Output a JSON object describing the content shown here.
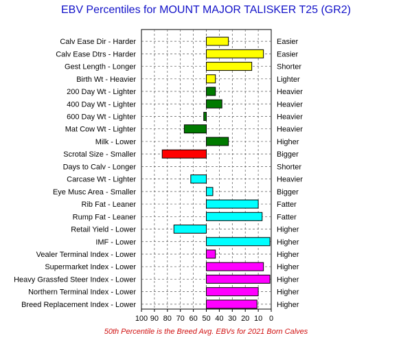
{
  "chart_data": {
    "type": "bar",
    "title": "EBV Percentiles for MOUNT MAJOR TALISKER T25 (GR2)",
    "footnote": "50th Percentile is the Breed Avg. EBVs for 2021 Born Calves",
    "xlim": [
      100,
      0
    ],
    "x_ticks": [
      100,
      90,
      80,
      70,
      60,
      50,
      40,
      30,
      20,
      10,
      0
    ],
    "baseline": 50,
    "grid": true,
    "categories": [
      "Calv Ease Dir - Harder",
      "Calv Ease Dtrs - Harder",
      "Gest Length - Longer",
      "Birth Wt - Heavier",
      "200 Day Wt - Lighter",
      "400 Day Wt - Lighter",
      "600 Day Wt - Lighter",
      "Mat Cow Wt - Lighter",
      "Milk - Lower",
      "Scrotal Size - Smaller",
      "Days to Calv - Longer",
      "Carcase Wt - Lighter",
      "Eye Musc Area - Smaller",
      "Rib Fat - Leaner",
      "Rump Fat - Leaner",
      "Retail Yield - Lower",
      "IMF - Lower",
      "Vealer Terminal Index - Lower",
      "Supermarket Index - Lower",
      "Heavy Grassfed Steer Index - Lower",
      "Northern Terminal Index - Lower",
      "Breed Replacement Index - Lower"
    ],
    "right_labels": [
      "Easier",
      "Easier",
      "Shorter",
      "Lighter",
      "Heavier",
      "Heavier",
      "Heavier",
      "Heavier",
      "Higher",
      "Bigger",
      "Shorter",
      "Heavier",
      "Bigger",
      "Fatter",
      "Fatter",
      "Higher",
      "Higher",
      "Higher",
      "Higher",
      "Higher",
      "Higher",
      "Higher"
    ],
    "values": [
      33,
      6,
      15,
      43,
      43,
      38,
      52,
      67,
      33,
      84,
      null,
      62,
      45,
      10,
      7,
      75,
      1,
      43,
      6,
      1,
      10,
      11
    ],
    "colors": [
      "#ffff00",
      "#ffff00",
      "#ffff00",
      "#ffff00",
      "#007a00",
      "#007a00",
      "#007a00",
      "#007a00",
      "#007a00",
      "#ff0000",
      "#ff0000",
      "#00ffff",
      "#00ffff",
      "#00ffff",
      "#00ffff",
      "#00ffff",
      "#00ffff",
      "#ff00ff",
      "#ff00ff",
      "#ff00ff",
      "#ff00ff",
      "#ff00ff"
    ]
  }
}
